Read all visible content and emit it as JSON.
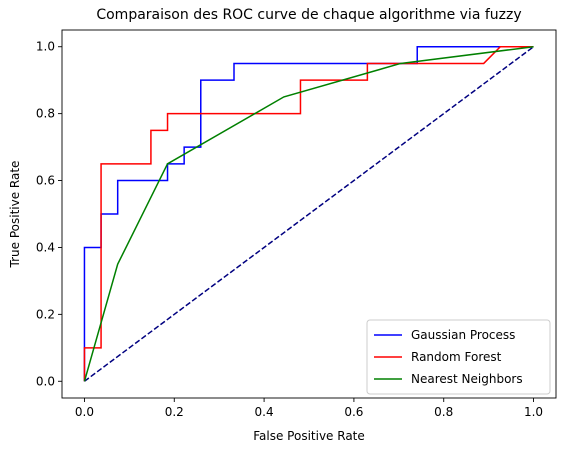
{
  "chart_data": {
    "type": "line",
    "title": "Comparaison des ROC curve de chaque algorithme via fuzzy",
    "xlabel": "False Positive Rate",
    "ylabel": "True Positive Rate",
    "xlim": [
      -0.05,
      1.05
    ],
    "ylim": [
      -0.05,
      1.05
    ],
    "xticks": [
      "0.0",
      "0.2",
      "0.4",
      "0.6",
      "0.8",
      "1.0"
    ],
    "yticks": [
      "0.0",
      "0.2",
      "0.4",
      "0.6",
      "0.8",
      "1.0"
    ],
    "grid": false,
    "legend_position": "bottom-right",
    "series": [
      {
        "name": "Gaussian Process",
        "color": "#0000ff",
        "style": "solid",
        "x": [
          0,
          0,
          0.037,
          0.037,
          0.074,
          0.074,
          0.185,
          0.185,
          0.222,
          0.222,
          0.259,
          0.259,
          0.333,
          0.333,
          0.741,
          0.741,
          1.0
        ],
        "y": [
          0,
          0.4,
          0.4,
          0.5,
          0.5,
          0.6,
          0.6,
          0.65,
          0.65,
          0.7,
          0.7,
          0.9,
          0.9,
          0.95,
          0.95,
          1.0,
          1.0
        ]
      },
      {
        "name": "Random Forest",
        "color": "#ff0000",
        "style": "solid",
        "x": [
          0,
          0,
          0.037,
          0.037,
          0.148,
          0.148,
          0.185,
          0.185,
          0.481,
          0.481,
          0.63,
          0.63,
          0.889,
          0.926,
          1.0
        ],
        "y": [
          0,
          0.1,
          0.1,
          0.65,
          0.65,
          0.75,
          0.75,
          0.8,
          0.8,
          0.9,
          0.9,
          0.95,
          0.95,
          1.0,
          1.0
        ]
      },
      {
        "name": "Nearest Neighbors",
        "color": "#008000",
        "style": "solid",
        "x": [
          0,
          0.074,
          0.185,
          0.444,
          0.704,
          1.0
        ],
        "y": [
          0,
          0.35,
          0.65,
          0.85,
          0.95,
          1.0
        ]
      },
      {
        "color": "#000080",
        "style": "dashed",
        "x": [
          0,
          1
        ],
        "y": [
          0,
          1
        ]
      }
    ]
  }
}
